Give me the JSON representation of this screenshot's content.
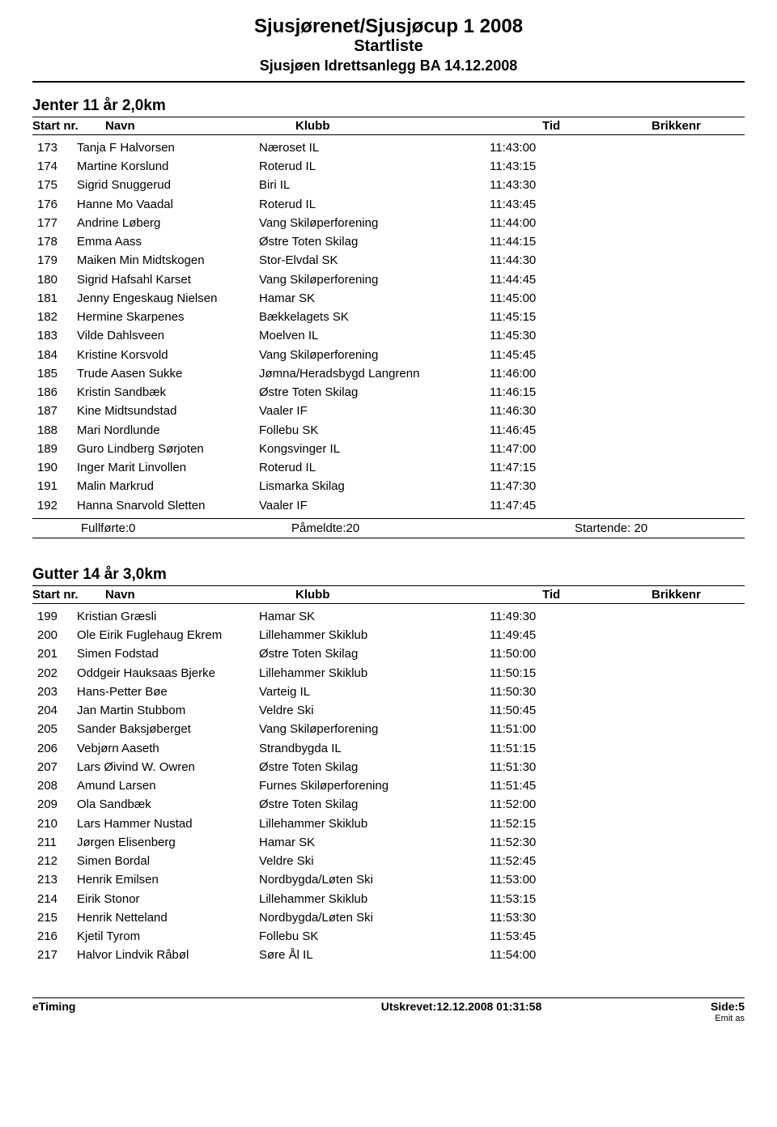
{
  "header": {
    "title": "Sjusjørenet/Sjusjøcup 1 2008",
    "subtitle": "Startliste",
    "venue": "Sjusjøen Idrettsanlegg BA 14.12.2008"
  },
  "columns": {
    "startnr": "Start nr.",
    "navn": "Navn",
    "klubb": "Klubb",
    "tid": "Tid",
    "brikkenr": "Brikkenr"
  },
  "section1": {
    "title": "Jenter 11 år 2,0km",
    "rows": [
      {
        "nr": "173",
        "name": "Tanja F Halvorsen",
        "club": "Næroset IL",
        "tid": "11:43:00"
      },
      {
        "nr": "174",
        "name": "Martine Korslund",
        "club": "Roterud IL",
        "tid": "11:43:15"
      },
      {
        "nr": "175",
        "name": "Sigrid Snuggerud",
        "club": "Biri IL",
        "tid": "11:43:30"
      },
      {
        "nr": "176",
        "name": "Hanne Mo Vaadal",
        "club": "Roterud IL",
        "tid": "11:43:45"
      },
      {
        "nr": "177",
        "name": "Andrine Løberg",
        "club": "Vang Skiløperforening",
        "tid": "11:44:00"
      },
      {
        "nr": "178",
        "name": "Emma Aass",
        "club": "Østre Toten Skilag",
        "tid": "11:44:15"
      },
      {
        "nr": "179",
        "name": "Maiken Min Midtskogen",
        "club": "Stor-Elvdal SK",
        "tid": "11:44:30"
      },
      {
        "nr": "180",
        "name": "Sigrid Hafsahl Karset",
        "club": "Vang Skiløperforening",
        "tid": "11:44:45"
      },
      {
        "nr": "181",
        "name": "Jenny Engeskaug Nielsen",
        "club": "Hamar SK",
        "tid": "11:45:00"
      },
      {
        "nr": "182",
        "name": "Hermine Skarpenes",
        "club": "Bækkelagets SK",
        "tid": "11:45:15"
      },
      {
        "nr": "183",
        "name": "Vilde Dahlsveen",
        "club": "Moelven IL",
        "tid": "11:45:30"
      },
      {
        "nr": "184",
        "name": "Kristine Korsvold",
        "club": "Vang Skiløperforening",
        "tid": "11:45:45"
      },
      {
        "nr": "185",
        "name": "Trude Aasen Sukke",
        "club": "Jømna/Heradsbygd Langrenn",
        "tid": "11:46:00"
      },
      {
        "nr": "186",
        "name": "Kristin Sandbæk",
        "club": "Østre Toten Skilag",
        "tid": "11:46:15"
      },
      {
        "nr": "187",
        "name": "Kine Midtsundstad",
        "club": "Vaaler IF",
        "tid": "11:46:30"
      },
      {
        "nr": "188",
        "name": "Mari Nordlunde",
        "club": "Follebu SK",
        "tid": "11:46:45"
      },
      {
        "nr": "189",
        "name": "Guro Lindberg Sørjoten",
        "club": "Kongsvinger IL",
        "tid": "11:47:00"
      },
      {
        "nr": "190",
        "name": "Inger Marit Linvollen",
        "club": "Roterud IL",
        "tid": "11:47:15"
      },
      {
        "nr": "191",
        "name": "Malin Markrud",
        "club": "Lismarka Skilag",
        "tid": "11:47:30"
      },
      {
        "nr": "192",
        "name": "Hanna Snarvold Sletten",
        "club": "Vaaler IF",
        "tid": "11:47:45"
      }
    ],
    "summary": {
      "fullforte": "Fullførte:0",
      "pameldte": "Påmeldte:20",
      "startende": "Startende: 20"
    }
  },
  "section2": {
    "title": "Gutter 14 år 3,0km",
    "rows": [
      {
        "nr": "199",
        "name": "Kristian Græsli",
        "club": "Hamar SK",
        "tid": "11:49:30"
      },
      {
        "nr": "200",
        "name": "Ole Eirik Fuglehaug Ekrem",
        "club": "Lillehammer Skiklub",
        "tid": "11:49:45"
      },
      {
        "nr": "201",
        "name": "Simen Fodstad",
        "club": "Østre Toten Skilag",
        "tid": "11:50:00"
      },
      {
        "nr": "202",
        "name": "Oddgeir Hauksaas Bjerke",
        "club": "Lillehammer Skiklub",
        "tid": "11:50:15"
      },
      {
        "nr": "203",
        "name": "Hans-Petter Bøe",
        "club": "Varteig IL",
        "tid": "11:50:30"
      },
      {
        "nr": "204",
        "name": "Jan Martin Stubbom",
        "club": "Veldre Ski",
        "tid": "11:50:45"
      },
      {
        "nr": "205",
        "name": "Sander Baksjøberget",
        "club": "Vang Skiløperforening",
        "tid": "11:51:00"
      },
      {
        "nr": "206",
        "name": "Vebjørn Aaseth",
        "club": "Strandbygda IL",
        "tid": "11:51:15"
      },
      {
        "nr": "207",
        "name": "Lars Øivind W. Owren",
        "club": "Østre Toten Skilag",
        "tid": "11:51:30"
      },
      {
        "nr": "208",
        "name": "Amund Larsen",
        "club": "Furnes Skiløperforening",
        "tid": "11:51:45"
      },
      {
        "nr": "209",
        "name": "Ola Sandbæk",
        "club": "Østre Toten Skilag",
        "tid": "11:52:00"
      },
      {
        "nr": "210",
        "name": "Lars Hammer Nustad",
        "club": "Lillehammer Skiklub",
        "tid": "11:52:15"
      },
      {
        "nr": "211",
        "name": "Jørgen Elisenberg",
        "club": "Hamar SK",
        "tid": "11:52:30"
      },
      {
        "nr": "212",
        "name": "Simen Bordal",
        "club": "Veldre Ski",
        "tid": "11:52:45"
      },
      {
        "nr": "213",
        "name": "Henrik Emilsen",
        "club": "Nordbygda/Løten Ski",
        "tid": "11:53:00"
      },
      {
        "nr": "214",
        "name": "Eirik Stonor",
        "club": "Lillehammer Skiklub",
        "tid": "11:53:15"
      },
      {
        "nr": "215",
        "name": "Henrik Netteland",
        "club": "Nordbygda/Løten Ski",
        "tid": "11:53:30"
      },
      {
        "nr": "216",
        "name": "Kjetil Tyrom",
        "club": "Follebu SK",
        "tid": "11:53:45"
      },
      {
        "nr": "217",
        "name": "Halvor Lindvik Råbøl",
        "club": "Søre Ål IL",
        "tid": "11:54:00"
      }
    ]
  },
  "footer": {
    "app": "eTiming",
    "printed": "Utskrevet:12.12.2008 01:31:58",
    "page": "Side:5",
    "credit": "Emit as"
  }
}
